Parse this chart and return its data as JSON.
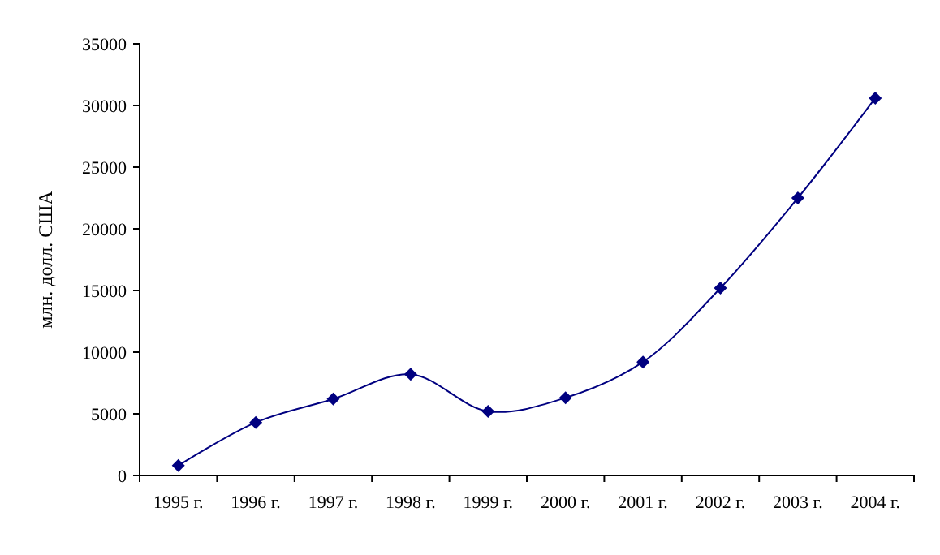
{
  "chart_data": {
    "type": "line",
    "ylabel": "млн. долл. США",
    "categories": [
      "1995 г.",
      "1996 г.",
      "1997 г.",
      "1998 г.",
      "1999 г.",
      "2000 г.",
      "2001 г.",
      "2002 г.",
      "2003 г.",
      "2004 г."
    ],
    "series": [
      {
        "color": "#000080",
        "values": [
          800,
          4300,
          6200,
          8200,
          5200,
          6300,
          9200,
          15200,
          22500,
          30600
        ]
      }
    ],
    "ylim": [
      0,
      35000
    ],
    "yticks": [
      0,
      5000,
      10000,
      15000,
      20000,
      25000,
      30000,
      35000
    ],
    "grid": false,
    "marker": "diamond",
    "line_style": "solid"
  }
}
